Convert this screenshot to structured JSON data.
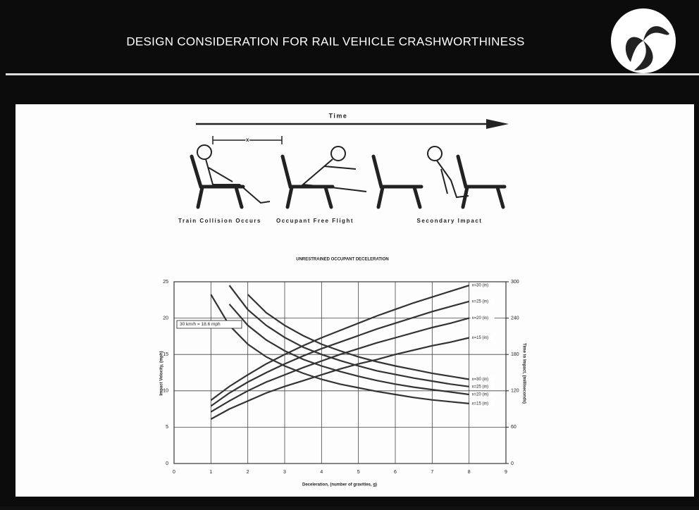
{
  "header": {
    "title": "DESIGN CONSIDERATION FOR RAIL VEHICLE CRASHWORTHINESS"
  },
  "diagram": {
    "time_label": "Time",
    "distance_label": "x",
    "stages": [
      "Train Collision Occurs",
      "Occupant Free Flight",
      "Secondary Impact"
    ]
  },
  "chart_data": {
    "type": "line",
    "title": "UNRESTRAINED OCCUPANT DECELERATION",
    "x_label": "Deceleration, (number of gravities, g)",
    "y_label": "Impact Velocity, (mph)",
    "y2_label": "Time to Impact, (milliseconds)",
    "annotation": "30 km/h = 18.6 mph",
    "x": [
      1,
      1.5,
      2,
      2.5,
      3,
      3.5,
      4,
      4.5,
      5,
      5.5,
      6,
      6.5,
      7,
      7.5,
      8
    ],
    "xlim": [
      0,
      9
    ],
    "xticks": [
      0,
      1,
      2,
      3,
      4,
      5,
      6,
      7,
      8,
      9
    ],
    "ylim": [
      0,
      25
    ],
    "yticks": [
      0,
      5,
      10,
      15,
      20,
      25
    ],
    "y2lim": [
      0,
      300
    ],
    "y2ticks": [
      0,
      60,
      120,
      180,
      240,
      300
    ],
    "grid": true,
    "series": [
      {
        "name": "x=30 (in)",
        "color": "#333333",
        "values": [
          8.7,
          10.6,
          12.2,
          13.7,
          15.0,
          16.2,
          17.3,
          18.3,
          19.3,
          20.3,
          21.2,
          22.1,
          22.9,
          23.7,
          24.5
        ]
      },
      {
        "name": "x=25 (in)",
        "color": "#333333",
        "values": [
          7.9,
          9.7,
          11.2,
          12.5,
          13.7,
          14.8,
          15.8,
          16.7,
          17.6,
          18.5,
          19.3,
          20.1,
          20.9,
          21.6,
          22.3
        ]
      },
      {
        "name": "x=20 (in)",
        "color": "#333333",
        "values": [
          7.1,
          8.6,
          10.0,
          11.2,
          12.2,
          13.2,
          14.1,
          15.0,
          15.8,
          16.6,
          17.3,
          18.0,
          18.7,
          19.3,
          20.0
        ]
      },
      {
        "name": "x=15 (in)",
        "color": "#333333",
        "values": [
          6.1,
          7.5,
          8.6,
          9.7,
          10.6,
          11.4,
          12.2,
          13.0,
          13.7,
          14.3,
          15.0,
          15.6,
          16.2,
          16.7,
          17.3
        ]
      },
      {
        "name": "x=30 (in)",
        "color": "#333333",
        "axis": "y2",
        "values": [
          null,
          null,
          279,
          249,
          228,
          211,
          197,
          186,
          176,
          168,
          161,
          155,
          149,
          144,
          139
        ]
      },
      {
        "name": "x=25 (in)",
        "color": "#333333",
        "axis": "y2",
        "values": [
          null,
          294,
          254,
          228,
          208,
          192,
          180,
          170,
          161,
          153,
          147,
          141,
          136,
          131,
          127
        ]
      },
      {
        "name": "x=20 (in)",
        "color": "#333333",
        "axis": "y2",
        "values": [
          null,
          263,
          228,
          204,
          186,
          172,
          161,
          152,
          144,
          137,
          131,
          126,
          122,
          118,
          114
        ]
      },
      {
        "name": "x=15 (in)",
        "color": "#333333",
        "axis": "y2",
        "values": [
          279,
          228,
          197,
          176,
          161,
          149,
          139,
          131,
          125,
          119,
          114,
          109,
          105,
          102,
          99
        ]
      }
    ]
  }
}
